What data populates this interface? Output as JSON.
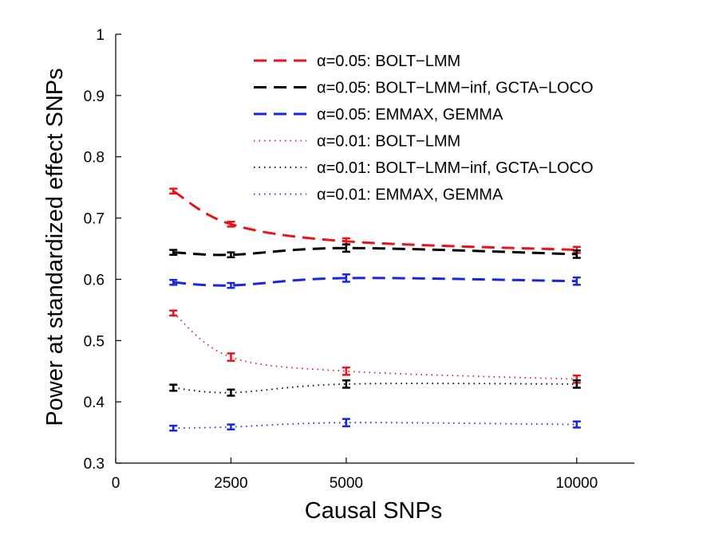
{
  "chart_data": {
    "type": "line",
    "xlabel": "Causal SNPs",
    "ylabel": "Power at standardized effect SNPs",
    "xlim": [
      0,
      11250
    ],
    "ylim": [
      0.3,
      1
    ],
    "x_ticks": [
      0,
      2500,
      5000,
      10000
    ],
    "x_tick_labels": [
      "0",
      "2500",
      "5000",
      "10000"
    ],
    "y_ticks": [
      0.3,
      0.4,
      0.5,
      0.6,
      0.7,
      0.8,
      0.9,
      1
    ],
    "y_tick_labels": [
      "0.3",
      "0.4",
      "0.5",
      "0.6",
      "0.7",
      "0.8",
      "0.9",
      "1"
    ],
    "grid": false,
    "legend_position": "top-right",
    "x": [
      1250,
      2500,
      5000,
      10000
    ],
    "series": [
      {
        "name": "α=0.05: BOLT−LMM",
        "color": "#e8141b",
        "style": "dashed",
        "values": [
          0.744,
          0.69,
          0.662,
          0.648
        ],
        "err": [
          0.004,
          0.004,
          0.005,
          0.005
        ]
      },
      {
        "name": "α=0.05: BOLT−LMM−inf, GCTA−LOCO",
        "color": "#000000",
        "style": "dashed",
        "values": [
          0.644,
          0.64,
          0.651,
          0.641
        ],
        "err": [
          0.004,
          0.004,
          0.006,
          0.006
        ]
      },
      {
        "name": "α=0.05: EMMAX, GEMMA",
        "color": "#1a25e0",
        "style": "dashed",
        "values": [
          0.595,
          0.59,
          0.602,
          0.597
        ],
        "err": [
          0.004,
          0.004,
          0.006,
          0.006
        ]
      },
      {
        "name": "α=0.01: BOLT−LMM",
        "color": "#e8141b",
        "style": "dotted",
        "values": [
          0.545,
          0.473,
          0.45,
          0.437
        ],
        "err": [
          0.004,
          0.006,
          0.006,
          0.006
        ]
      },
      {
        "name": "α=0.01: BOLT−LMM−inf, GCTA−LOCO",
        "color": "#000000",
        "style": "dotted",
        "values": [
          0.423,
          0.415,
          0.429,
          0.429
        ],
        "err": [
          0.005,
          0.005,
          0.006,
          0.006
        ]
      },
      {
        "name": "α=0.01: EMMAX, GEMMA",
        "color": "#1a25e0",
        "style": "dotted",
        "values": [
          0.357,
          0.359,
          0.366,
          0.363
        ],
        "err": [
          0.004,
          0.004,
          0.006,
          0.005
        ]
      }
    ]
  }
}
